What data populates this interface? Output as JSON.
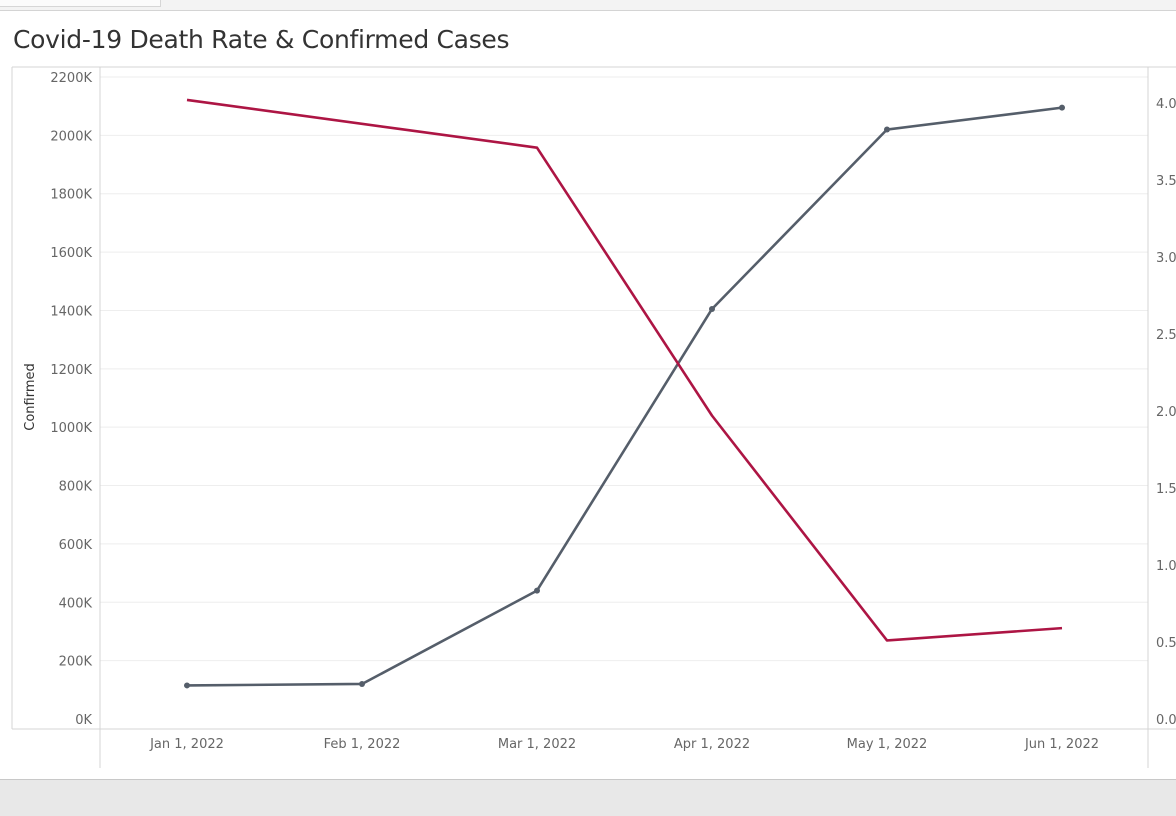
{
  "title": "Covid-19 Death Rate & Confirmed Cases",
  "colors": {
    "confirmed": "#555e6a",
    "death_rate": "#ad1544",
    "grid": "#eeeeee",
    "axis": "#d4d4d4"
  },
  "chart_data": {
    "type": "line",
    "title": "Covid-19 Death Rate & Confirmed Cases",
    "x": [
      "Jan 1, 2022",
      "Feb 1, 2022",
      "Mar 1, 2022",
      "Apr 1, 2022",
      "May 1, 2022",
      "Jun 1, 2022"
    ],
    "xlabel": "",
    "ylabel": "Confirmed",
    "ylim": [
      0,
      2200000
    ],
    "y_ticks": [
      "0K",
      "200K",
      "400K",
      "600K",
      "800K",
      "1000K",
      "1200K",
      "1400K",
      "1600K",
      "1800K",
      "2000K",
      "2200K"
    ],
    "y2lim": [
      0,
      4.2
    ],
    "y2_ticks": [
      "0.0",
      "0.5",
      "1.0",
      "1.5",
      "2.0",
      "2.5",
      "3.0",
      "3.5",
      "4.0"
    ],
    "y2label": "",
    "grid": true,
    "series": [
      {
        "axis": "left",
        "color": "#555e6a",
        "markers": true,
        "values": [
          115000,
          120000,
          440000,
          1405000,
          2020000,
          2095000
        ]
      },
      {
        "axis": "right",
        "color": "#ad1544",
        "markers": false,
        "values": [
          4.02,
          null,
          3.71,
          1.97,
          0.51,
          0.59
        ]
      }
    ]
  }
}
